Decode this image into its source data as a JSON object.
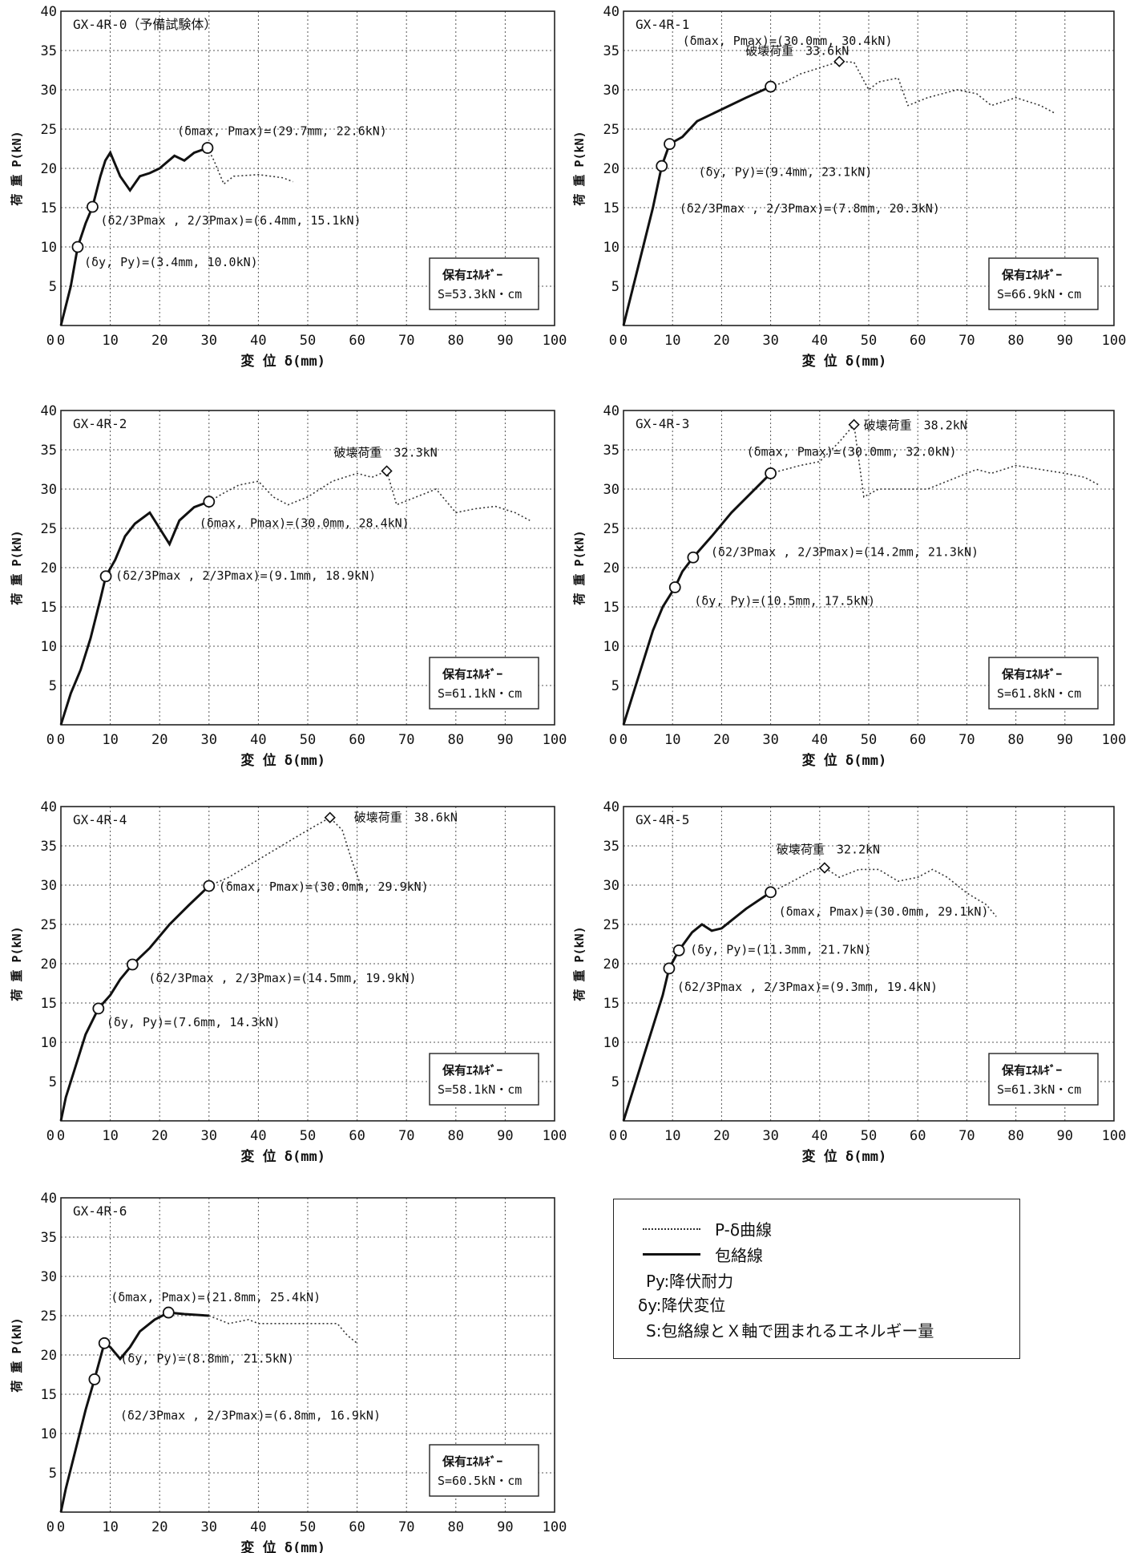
{
  "chart_data": [
    {
      "type": "line",
      "title": "GX-4R-0（予備試験体）",
      "xlabel": "変 位 δ(mm)",
      "ylabel": "荷 重 P(kN)",
      "xlim": [
        0,
        100
      ],
      "ylim": [
        0,
        40
      ],
      "xticks": [
        0,
        10,
        20,
        30,
        40,
        50,
        60,
        70,
        80,
        90,
        100
      ],
      "yticks": [
        5,
        10,
        15,
        20,
        25,
        30,
        35,
        40
      ],
      "grid": true,
      "energy_label": "保有ｴﾈﾙｷﾞｰ",
      "energy_value": "S=53.3kN・cm",
      "envelope": [
        [
          0,
          0
        ],
        [
          1,
          2.5
        ],
        [
          2,
          5
        ],
        [
          3.4,
          10
        ],
        [
          5,
          13
        ],
        [
          6.4,
          15.1
        ],
        [
          8,
          19
        ],
        [
          9,
          21
        ],
        [
          10,
          22
        ],
        [
          12,
          19
        ],
        [
          14,
          17.2
        ],
        [
          16,
          19
        ],
        [
          18,
          19.4
        ],
        [
          20,
          20
        ],
        [
          23,
          21.6
        ],
        [
          25,
          21
        ],
        [
          27,
          22
        ],
        [
          29.7,
          22.6
        ]
      ],
      "p_delta": [
        [
          29.7,
          22.6
        ],
        [
          31,
          21
        ],
        [
          33,
          18
        ],
        [
          35,
          19
        ],
        [
          40,
          19.2
        ],
        [
          45,
          18.8
        ],
        [
          47,
          18.3
        ]
      ],
      "points": [
        {
          "x": 29.7,
          "y": 22.6,
          "marker": "circle",
          "label": "(δmax, Pmax)=(29.7mm, 22.6kN)"
        },
        {
          "x": 6.4,
          "y": 15.1,
          "marker": "circle",
          "label": "(δ2/3Pmax , 2/3Pmax)=(6.4mm, 15.1kN)"
        },
        {
          "x": 3.4,
          "y": 10.0,
          "marker": "circle",
          "label": "(δy, Py)=(3.4mm, 10.0kN)"
        }
      ]
    },
    {
      "type": "line",
      "title": "GX-4R-1",
      "xlabel": "変 位 δ(mm)",
      "ylabel": "荷 重 P(kN)",
      "xlim": [
        0,
        100
      ],
      "ylim": [
        0,
        40
      ],
      "xticks": [
        0,
        10,
        20,
        30,
        40,
        50,
        60,
        70,
        80,
        90,
        100
      ],
      "yticks": [
        5,
        10,
        15,
        20,
        25,
        30,
        35,
        40
      ],
      "grid": true,
      "energy_label": "保有ｴﾈﾙｷﾞｰ",
      "energy_value": "S=66.9kN・cm",
      "envelope": [
        [
          0,
          0
        ],
        [
          2,
          5
        ],
        [
          4,
          10
        ],
        [
          6,
          15
        ],
        [
          7.8,
          20.3
        ],
        [
          9.4,
          23.1
        ],
        [
          12,
          24
        ],
        [
          15,
          26
        ],
        [
          20,
          27.5
        ],
        [
          25,
          29
        ],
        [
          30,
          30.4
        ]
      ],
      "p_delta": [
        [
          30,
          30.4
        ],
        [
          33,
          31
        ],
        [
          36,
          32
        ],
        [
          40,
          32.8
        ],
        [
          44,
          33.6
        ],
        [
          47,
          33.5
        ],
        [
          50,
          30
        ],
        [
          52,
          31
        ],
        [
          56,
          31.5
        ],
        [
          58,
          28
        ],
        [
          62,
          29
        ],
        [
          68,
          30
        ],
        [
          72,
          29.5
        ],
        [
          75,
          28
        ],
        [
          80,
          29
        ],
        [
          85,
          28
        ],
        [
          88,
          27
        ]
      ],
      "points": [
        {
          "x": 30,
          "y": 30.4,
          "marker": "circle",
          "label": "(δmax, Pmax)=(30.0mm, 30.4kN)"
        },
        {
          "x": 44,
          "y": 33.6,
          "marker": "diamond",
          "label": "破壊荷重　33.6kN"
        },
        {
          "x": 9.4,
          "y": 23.1,
          "marker": "circle",
          "label": "(δy, Py)=(9.4mm, 23.1kN)"
        },
        {
          "x": 7.8,
          "y": 20.3,
          "marker": "circle",
          "label": "(δ2/3Pmax , 2/3Pmax)=(7.8mm, 20.3kN)"
        }
      ]
    },
    {
      "type": "line",
      "title": "GX-4R-2",
      "xlabel": "変 位 δ(mm)",
      "ylabel": "荷 重 P(kN)",
      "xlim": [
        0,
        100
      ],
      "ylim": [
        0,
        40
      ],
      "xticks": [
        0,
        10,
        20,
        30,
        40,
        50,
        60,
        70,
        80,
        90,
        100
      ],
      "yticks": [
        5,
        10,
        15,
        20,
        25,
        30,
        35,
        40
      ],
      "grid": true,
      "energy_label": "保有ｴﾈﾙｷﾞｰ",
      "energy_value": "S=61.1kN・cm",
      "envelope": [
        [
          0,
          0
        ],
        [
          2,
          4
        ],
        [
          4,
          7
        ],
        [
          6,
          11
        ],
        [
          8,
          16
        ],
        [
          9.1,
          18.9
        ],
        [
          11,
          21
        ],
        [
          13,
          24
        ],
        [
          15,
          25.6
        ],
        [
          18,
          27
        ],
        [
          20,
          25
        ],
        [
          22,
          23
        ],
        [
          24,
          26
        ],
        [
          27,
          27.7
        ],
        [
          30,
          28.4
        ]
      ],
      "p_delta": [
        [
          30,
          28.4
        ],
        [
          33,
          29.5
        ],
        [
          36,
          30.5
        ],
        [
          40,
          31
        ],
        [
          43,
          29
        ],
        [
          46,
          28
        ],
        [
          50,
          29
        ],
        [
          55,
          31
        ],
        [
          60,
          32
        ],
        [
          63,
          31.5
        ],
        [
          66,
          32.3
        ],
        [
          68,
          28
        ],
        [
          72,
          29
        ],
        [
          76,
          30
        ],
        [
          80,
          27
        ],
        [
          84,
          27.5
        ],
        [
          88,
          27.8
        ],
        [
          92,
          27
        ],
        [
          95,
          26
        ]
      ],
      "points": [
        {
          "x": 30,
          "y": 28.4,
          "marker": "circle",
          "label": "(δmax, Pmax)=(30.0mm, 28.4kN)"
        },
        {
          "x": 66,
          "y": 32.3,
          "marker": "diamond",
          "label": "破壊荷重　32.3kN"
        },
        {
          "x": 9.1,
          "y": 18.9,
          "marker": "circle",
          "label": "(δ2/3Pmax , 2/3Pmax)=(9.1mm, 18.9kN)"
        }
      ]
    },
    {
      "type": "line",
      "title": "GX-4R-3",
      "xlabel": "変 位 δ(mm)",
      "ylabel": "荷 重 P(kN)",
      "xlim": [
        0,
        100
      ],
      "ylim": [
        0,
        40
      ],
      "xticks": [
        0,
        10,
        20,
        30,
        40,
        50,
        60,
        70,
        80,
        90,
        100
      ],
      "yticks": [
        5,
        10,
        15,
        20,
        25,
        30,
        35,
        40
      ],
      "grid": true,
      "energy_label": "保有ｴﾈﾙｷﾞｰ",
      "energy_value": "S=61.8kN・cm",
      "envelope": [
        [
          0,
          0
        ],
        [
          2,
          4
        ],
        [
          4,
          8
        ],
        [
          6,
          12
        ],
        [
          8,
          15
        ],
        [
          10.5,
          17.5
        ],
        [
          12,
          19.5
        ],
        [
          14.2,
          21.3
        ],
        [
          18,
          24
        ],
        [
          22,
          27
        ],
        [
          26,
          29.5
        ],
        [
          30,
          32
        ]
      ],
      "p_delta": [
        [
          30,
          32
        ],
        [
          33,
          32.5
        ],
        [
          36,
          33
        ],
        [
          40,
          33.5
        ],
        [
          44,
          36
        ],
        [
          47,
          38.2
        ],
        [
          49,
          29
        ],
        [
          52,
          30
        ],
        [
          56,
          30
        ],
        [
          62,
          30
        ],
        [
          66,
          31
        ],
        [
          72,
          32.5
        ],
        [
          75,
          32
        ],
        [
          80,
          33
        ],
        [
          85,
          32.5
        ],
        [
          90,
          32
        ],
        [
          94,
          31.5
        ],
        [
          97,
          30.5
        ]
      ],
      "points": [
        {
          "x": 30,
          "y": 32.0,
          "marker": "circle",
          "label": "(δmax, Pmax)=(30.0mm, 32.0kN)"
        },
        {
          "x": 47,
          "y": 38.2,
          "marker": "diamond",
          "label": "破壊荷重　38.2kN"
        },
        {
          "x": 14.2,
          "y": 21.3,
          "marker": "circle",
          "label": "(δ2/3Pmax , 2/3Pmax)=(14.2mm, 21.3kN)"
        },
        {
          "x": 10.5,
          "y": 17.5,
          "marker": "circle",
          "label": "(δy, Py)=(10.5mm, 17.5kN)"
        }
      ]
    },
    {
      "type": "line",
      "title": "GX-4R-4",
      "xlabel": "変 位 δ(mm)",
      "ylabel": "荷 重 P(kN)",
      "xlim": [
        0,
        100
      ],
      "ylim": [
        0,
        40
      ],
      "xticks": [
        0,
        10,
        20,
        30,
        40,
        50,
        60,
        70,
        80,
        90,
        100
      ],
      "yticks": [
        5,
        10,
        15,
        20,
        25,
        30,
        35,
        40
      ],
      "grid": true,
      "energy_label": "保有ｴﾈﾙｷﾞｰ",
      "energy_value": "S=58.1kN・cm",
      "envelope": [
        [
          0,
          0
        ],
        [
          1,
          3
        ],
        [
          3,
          7
        ],
        [
          5,
          11
        ],
        [
          7.6,
          14.3
        ],
        [
          10,
          16
        ],
        [
          12,
          18
        ],
        [
          14.5,
          19.9
        ],
        [
          18,
          22
        ],
        [
          22,
          25
        ],
        [
          26,
          27.5
        ],
        [
          30,
          29.9
        ]
      ],
      "p_delta": [
        [
          30,
          29.9
        ],
        [
          34,
          31
        ],
        [
          38,
          32.5
        ],
        [
          42,
          34
        ],
        [
          46,
          35.5
        ],
        [
          50,
          37
        ],
        [
          54.5,
          38.6
        ],
        [
          57,
          37
        ],
        [
          59,
          33
        ],
        [
          61,
          29.5
        ]
      ],
      "points": [
        {
          "x": 30,
          "y": 29.9,
          "marker": "circle",
          "label": "(δmax, Pmax)=(30.0mm, 29.9kN)"
        },
        {
          "x": 54.5,
          "y": 38.6,
          "marker": "diamond",
          "label": "破壊荷重　38.6kN"
        },
        {
          "x": 14.5,
          "y": 19.9,
          "marker": "circle",
          "label": "(δ2/3Pmax , 2/3Pmax)=(14.5mm, 19.9kN)"
        },
        {
          "x": 7.6,
          "y": 14.3,
          "marker": "circle",
          "label": "(δy, Py)=(7.6mm, 14.3kN)"
        }
      ]
    },
    {
      "type": "line",
      "title": "GX-4R-5",
      "xlabel": "変 位 δ(mm)",
      "ylabel": "荷 重 P(kN)",
      "xlim": [
        0,
        100
      ],
      "ylim": [
        0,
        40
      ],
      "xticks": [
        0,
        10,
        20,
        30,
        40,
        50,
        60,
        70,
        80,
        90,
        100
      ],
      "yticks": [
        5,
        10,
        15,
        20,
        25,
        30,
        35,
        40
      ],
      "grid": true,
      "energy_label": "保有ｴﾈﾙｷﾞｰ",
      "energy_value": "S=61.3kN・cm",
      "envelope": [
        [
          0,
          0
        ],
        [
          2,
          4
        ],
        [
          4,
          8
        ],
        [
          6,
          12
        ],
        [
          8,
          16
        ],
        [
          9.3,
          19.4
        ],
        [
          11.3,
          21.7
        ],
        [
          14,
          24
        ],
        [
          16,
          25
        ],
        [
          18,
          24.2
        ],
        [
          20,
          24.5
        ],
        [
          22,
          25.5
        ],
        [
          25,
          27
        ],
        [
          30,
          29.1
        ]
      ],
      "p_delta": [
        [
          30,
          29.1
        ],
        [
          33,
          30
        ],
        [
          36,
          31
        ],
        [
          39,
          32
        ],
        [
          41,
          32.2
        ],
        [
          44,
          31
        ],
        [
          48,
          32
        ],
        [
          52,
          32
        ],
        [
          56,
          30.5
        ],
        [
          60,
          31
        ],
        [
          63,
          32
        ],
        [
          66,
          31
        ],
        [
          70,
          29
        ],
        [
          74,
          27.5
        ],
        [
          76,
          26
        ]
      ],
      "points": [
        {
          "x": 30,
          "y": 29.1,
          "marker": "circle",
          "label": "(δmax, Pmax)=(30.0mm, 29.1kN)"
        },
        {
          "x": 41,
          "y": 32.2,
          "marker": "diamond",
          "label": "破壊荷重　32.2kN"
        },
        {
          "x": 11.3,
          "y": 21.7,
          "marker": "circle",
          "label": "(δy, Py)=(11.3mm, 21.7kN)"
        },
        {
          "x": 9.3,
          "y": 19.4,
          "marker": "circle",
          "label": "(δ2/3Pmax , 2/3Pmax)=(9.3mm, 19.4kN)"
        }
      ]
    },
    {
      "type": "line",
      "title": "GX-4R-6",
      "xlabel": "変 位 δ(mm)",
      "ylabel": "荷 重 P(kN)",
      "xlim": [
        0,
        100
      ],
      "ylim": [
        0,
        40
      ],
      "xticks": [
        0,
        10,
        20,
        30,
        40,
        50,
        60,
        70,
        80,
        90,
        100
      ],
      "yticks": [
        5,
        10,
        15,
        20,
        25,
        30,
        35,
        40
      ],
      "grid": true,
      "energy_label": "保有ｴﾈﾙｷﾞｰ",
      "energy_value": "S=60.5kN・cm",
      "envelope": [
        [
          0,
          0
        ],
        [
          1,
          3
        ],
        [
          3,
          8
        ],
        [
          5,
          13
        ],
        [
          6.8,
          16.9
        ],
        [
          8.8,
          21.5
        ],
        [
          10,
          21
        ],
        [
          12,
          19.5
        ],
        [
          14,
          21
        ],
        [
          16,
          23
        ],
        [
          19,
          24.5
        ],
        [
          21.8,
          25.4
        ],
        [
          25,
          25.2
        ],
        [
          30,
          25
        ]
      ],
      "p_delta": [
        [
          30,
          25
        ],
        [
          34,
          24
        ],
        [
          38,
          24.5
        ],
        [
          40,
          24
        ],
        [
          44,
          24
        ],
        [
          48,
          24
        ],
        [
          52,
          24
        ],
        [
          56,
          24
        ],
        [
          58,
          22.5
        ],
        [
          60,
          21.5
        ]
      ],
      "points": [
        {
          "x": 21.8,
          "y": 25.4,
          "marker": "circle",
          "label": "(δmax, Pmax)=(21.8mm, 25.4kN)"
        },
        {
          "x": 8.8,
          "y": 21.5,
          "marker": "circle",
          "label": "(δy, Py)=(8.8mm, 21.5kN)"
        },
        {
          "x": 6.8,
          "y": 16.9,
          "marker": "circle",
          "label": "(δ2/3Pmax , 2/3Pmax)=(6.8mm, 16.9kN)"
        }
      ]
    }
  ],
  "legend": {
    "dotted_label": "P-δ曲線",
    "solid_label": "包絡線",
    "py_label": "Py:降伏耐力",
    "dy_label": "δy:降伏変位",
    "s_label": "S:包絡線とＸ軸で囲まれるエネルギー量"
  }
}
